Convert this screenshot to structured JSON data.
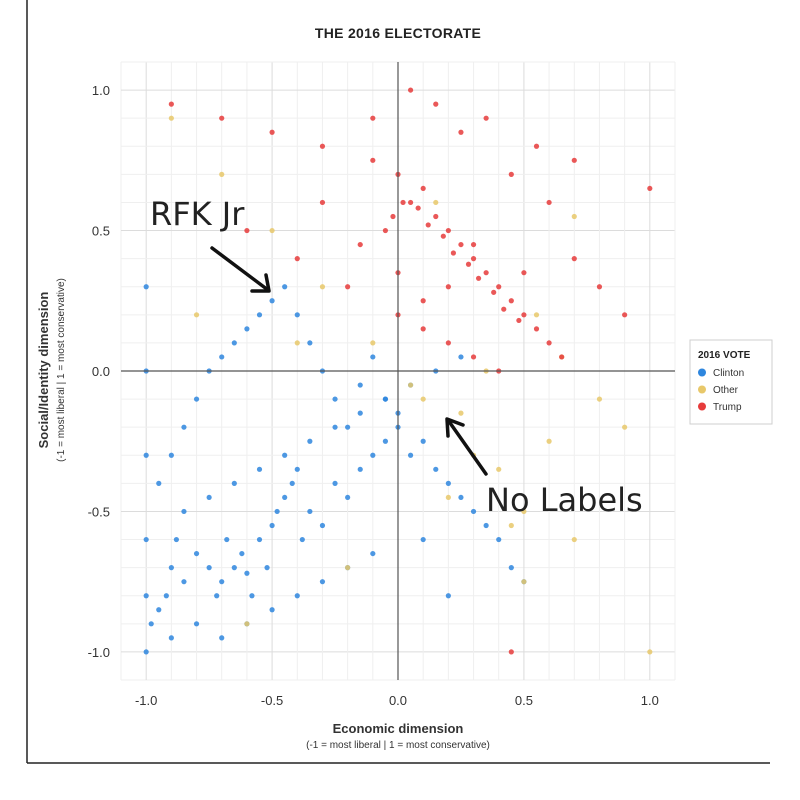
{
  "chart_data": {
    "type": "scatter",
    "title": "THE 2016 ELECTORATE",
    "xlabel": "Economic dimension",
    "xlabel_note": "(-1 = most liberal | 1 = most conservative)",
    "ylabel": "Social/Identity dimension",
    "ylabel_note": "(-1 = most liberal | 1 = most conservative)",
    "xlim": [
      -1.1,
      1.1
    ],
    "ylim": [
      -1.1,
      1.1
    ],
    "x_ticks": [
      -1.0,
      -0.5,
      0.0,
      0.5,
      1.0
    ],
    "x_tick_labels": [
      "-1.0",
      "-0.5",
      "0.0",
      "0.5",
      "1.0"
    ],
    "y_ticks": [
      -1.0,
      -0.5,
      0.0,
      0.5,
      1.0
    ],
    "y_tick_labels": [
      "-1.0",
      "-0.5",
      "0.0",
      "0.5",
      "1.0"
    ],
    "grid": true,
    "legend": {
      "title": "2016 VOTE",
      "placement": "right",
      "entries": [
        "Clinton",
        "Other",
        "Trump"
      ]
    },
    "series": [
      {
        "name": "Clinton",
        "color": "#2e86de",
        "x": [
          -1.0,
          -1.0,
          -1.0,
          -1.0,
          -1.0,
          -1.0,
          -0.98,
          -0.95,
          -0.92,
          -0.9,
          -0.88,
          -0.85,
          -0.8,
          -0.75,
          -0.72,
          -0.7,
          -0.68,
          -0.65,
          -0.62,
          -0.6,
          -0.58,
          -0.55,
          -0.52,
          -0.5,
          -0.48,
          -0.45,
          -0.42,
          -0.4,
          -0.38,
          -0.35,
          -0.3,
          -0.25,
          -0.2,
          -0.15,
          -0.1,
          -0.05,
          0.0,
          0.05,
          0.1,
          0.15,
          0.2,
          0.25,
          0.3,
          0.35,
          0.4,
          0.45,
          -0.95,
          -0.9,
          -0.85,
          -0.8,
          -0.75,
          -0.7,
          -0.65,
          -0.6,
          -0.55,
          -0.5,
          -0.45,
          -0.4,
          -0.35,
          -0.3,
          -0.25,
          -0.2,
          -0.15,
          -0.1,
          -0.05,
          0.0,
          0.1,
          0.2,
          -0.9,
          -0.8,
          -0.7,
          -0.6,
          -0.5,
          -0.4,
          -0.3,
          -0.2,
          -0.1,
          -0.85,
          -0.75,
          -0.65,
          -0.55,
          -0.45,
          -0.35,
          -0.25,
          -0.15,
          -0.05,
          0.05,
          0.15,
          0.25,
          0.5
        ],
        "y": [
          -1.0,
          -0.8,
          -0.6,
          -0.3,
          0.0,
          0.3,
          -0.9,
          -0.85,
          -0.8,
          -0.7,
          -0.6,
          -0.75,
          -0.65,
          -0.7,
          -0.8,
          -0.75,
          -0.6,
          -0.7,
          -0.65,
          -0.72,
          -0.8,
          -0.6,
          -0.7,
          -0.55,
          -0.5,
          -0.45,
          -0.4,
          -0.35,
          -0.6,
          -0.5,
          -0.55,
          -0.4,
          -0.45,
          -0.35,
          -0.3,
          -0.25,
          -0.2,
          -0.3,
          -0.25,
          -0.35,
          -0.4,
          -0.45,
          -0.5,
          -0.55,
          -0.6,
          -0.7,
          -0.4,
          -0.3,
          -0.2,
          -0.1,
          0.0,
          0.05,
          0.1,
          0.15,
          0.2,
          0.25,
          0.3,
          0.2,
          0.1,
          0.0,
          -0.1,
          -0.2,
          -0.05,
          0.05,
          -0.1,
          -0.15,
          -0.6,
          -0.8,
          -0.95,
          -0.9,
          -0.95,
          -0.9,
          -0.85,
          -0.8,
          -0.75,
          -0.7,
          -0.65,
          -0.5,
          -0.45,
          -0.4,
          -0.35,
          -0.3,
          -0.25,
          -0.2,
          -0.15,
          -0.1,
          -0.05,
          0.0,
          0.05,
          -0.75
        ]
      },
      {
        "name": "Other",
        "color": "#e8c86a",
        "x": [
          -0.9,
          -0.7,
          -0.5,
          -0.3,
          -0.1,
          0.1,
          0.3,
          0.5,
          0.7,
          0.9,
          -0.6,
          -0.2,
          0.2,
          0.45,
          0.6,
          0.8,
          1.0,
          0.35,
          0.55,
          0.15,
          -0.4,
          0.05,
          0.25,
          0.65,
          -0.8,
          0.4,
          0.5,
          0.7
        ],
        "y": [
          0.9,
          0.7,
          0.5,
          0.3,
          0.1,
          -0.1,
          -0.3,
          -0.5,
          -0.6,
          -0.2,
          -0.9,
          -0.7,
          -0.45,
          -0.55,
          -0.25,
          -0.1,
          -1.0,
          0.0,
          0.2,
          0.6,
          0.1,
          -0.05,
          -0.15,
          0.05,
          0.2,
          -0.35,
          -0.75,
          0.55
        ]
      },
      {
        "name": "Trump",
        "color": "#e63b3b",
        "x": [
          -0.9,
          -0.7,
          -0.5,
          -0.3,
          -0.1,
          0.0,
          0.05,
          0.1,
          0.15,
          0.2,
          0.25,
          0.3,
          0.35,
          0.4,
          0.45,
          0.5,
          0.55,
          0.6,
          0.65,
          0.7,
          0.8,
          0.9,
          1.0,
          -0.05,
          -0.02,
          0.02,
          0.08,
          0.12,
          0.18,
          0.22,
          0.28,
          0.32,
          0.38,
          0.42,
          0.48,
          -0.6,
          -0.4,
          -0.2,
          0.0,
          0.1,
          0.2,
          0.3,
          0.4,
          0.5,
          0.6,
          0.7,
          -0.1,
          0.05,
          0.15,
          0.25,
          0.35,
          0.45,
          0.55,
          0.0,
          0.1,
          0.2,
          0.3,
          -0.3,
          -0.15,
          0.45
        ],
        "y": [
          0.95,
          0.9,
          0.85,
          0.8,
          0.75,
          0.7,
          0.6,
          0.65,
          0.55,
          0.5,
          0.45,
          0.4,
          0.35,
          0.3,
          0.25,
          0.2,
          0.15,
          0.1,
          0.05,
          0.4,
          0.3,
          0.2,
          0.65,
          0.5,
          0.55,
          0.6,
          0.58,
          0.52,
          0.48,
          0.42,
          0.38,
          0.33,
          0.28,
          0.22,
          0.18,
          0.5,
          0.4,
          0.3,
          0.2,
          0.15,
          0.1,
          0.05,
          0.0,
          0.35,
          0.6,
          0.75,
          0.9,
          1.0,
          0.95,
          0.85,
          0.9,
          0.7,
          0.8,
          0.35,
          0.25,
          0.3,
          0.45,
          0.6,
          0.45,
          -1.0
        ]
      }
    ],
    "annotations": [
      {
        "text": "RFK Jr",
        "x": -0.5,
        "y": 0.27
      },
      {
        "text": "No Labels",
        "x": 0.18,
        "y": -0.17
      }
    ]
  }
}
